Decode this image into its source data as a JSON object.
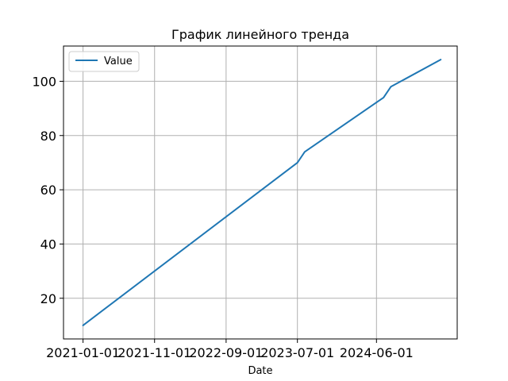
{
  "chart_data": {
    "type": "line",
    "title": "График линейного тренда",
    "xlabel": "Date",
    "ylabel": "",
    "x_tick_labels": [
      "2021-01-01",
      "2021-11-01",
      "2022-09-01",
      "2023-07-01",
      "2024-06-01"
    ],
    "y_ticks": [
      20,
      40,
      60,
      80,
      100
    ],
    "ylim": [
      5,
      113
    ],
    "xlim": [
      "2020-10-10",
      "2025-05-10"
    ],
    "grid": true,
    "legend_placement": "top-left",
    "series_color": "#1f77b4",
    "series": [
      {
        "name": "Value",
        "x": [
          "2021-01-01",
          "2023-07-01",
          "2023-08-01",
          "2024-07-01",
          "2024-08-01",
          "2025-03-01"
        ],
        "values": [
          10,
          70,
          74,
          94,
          98,
          108
        ]
      }
    ]
  }
}
